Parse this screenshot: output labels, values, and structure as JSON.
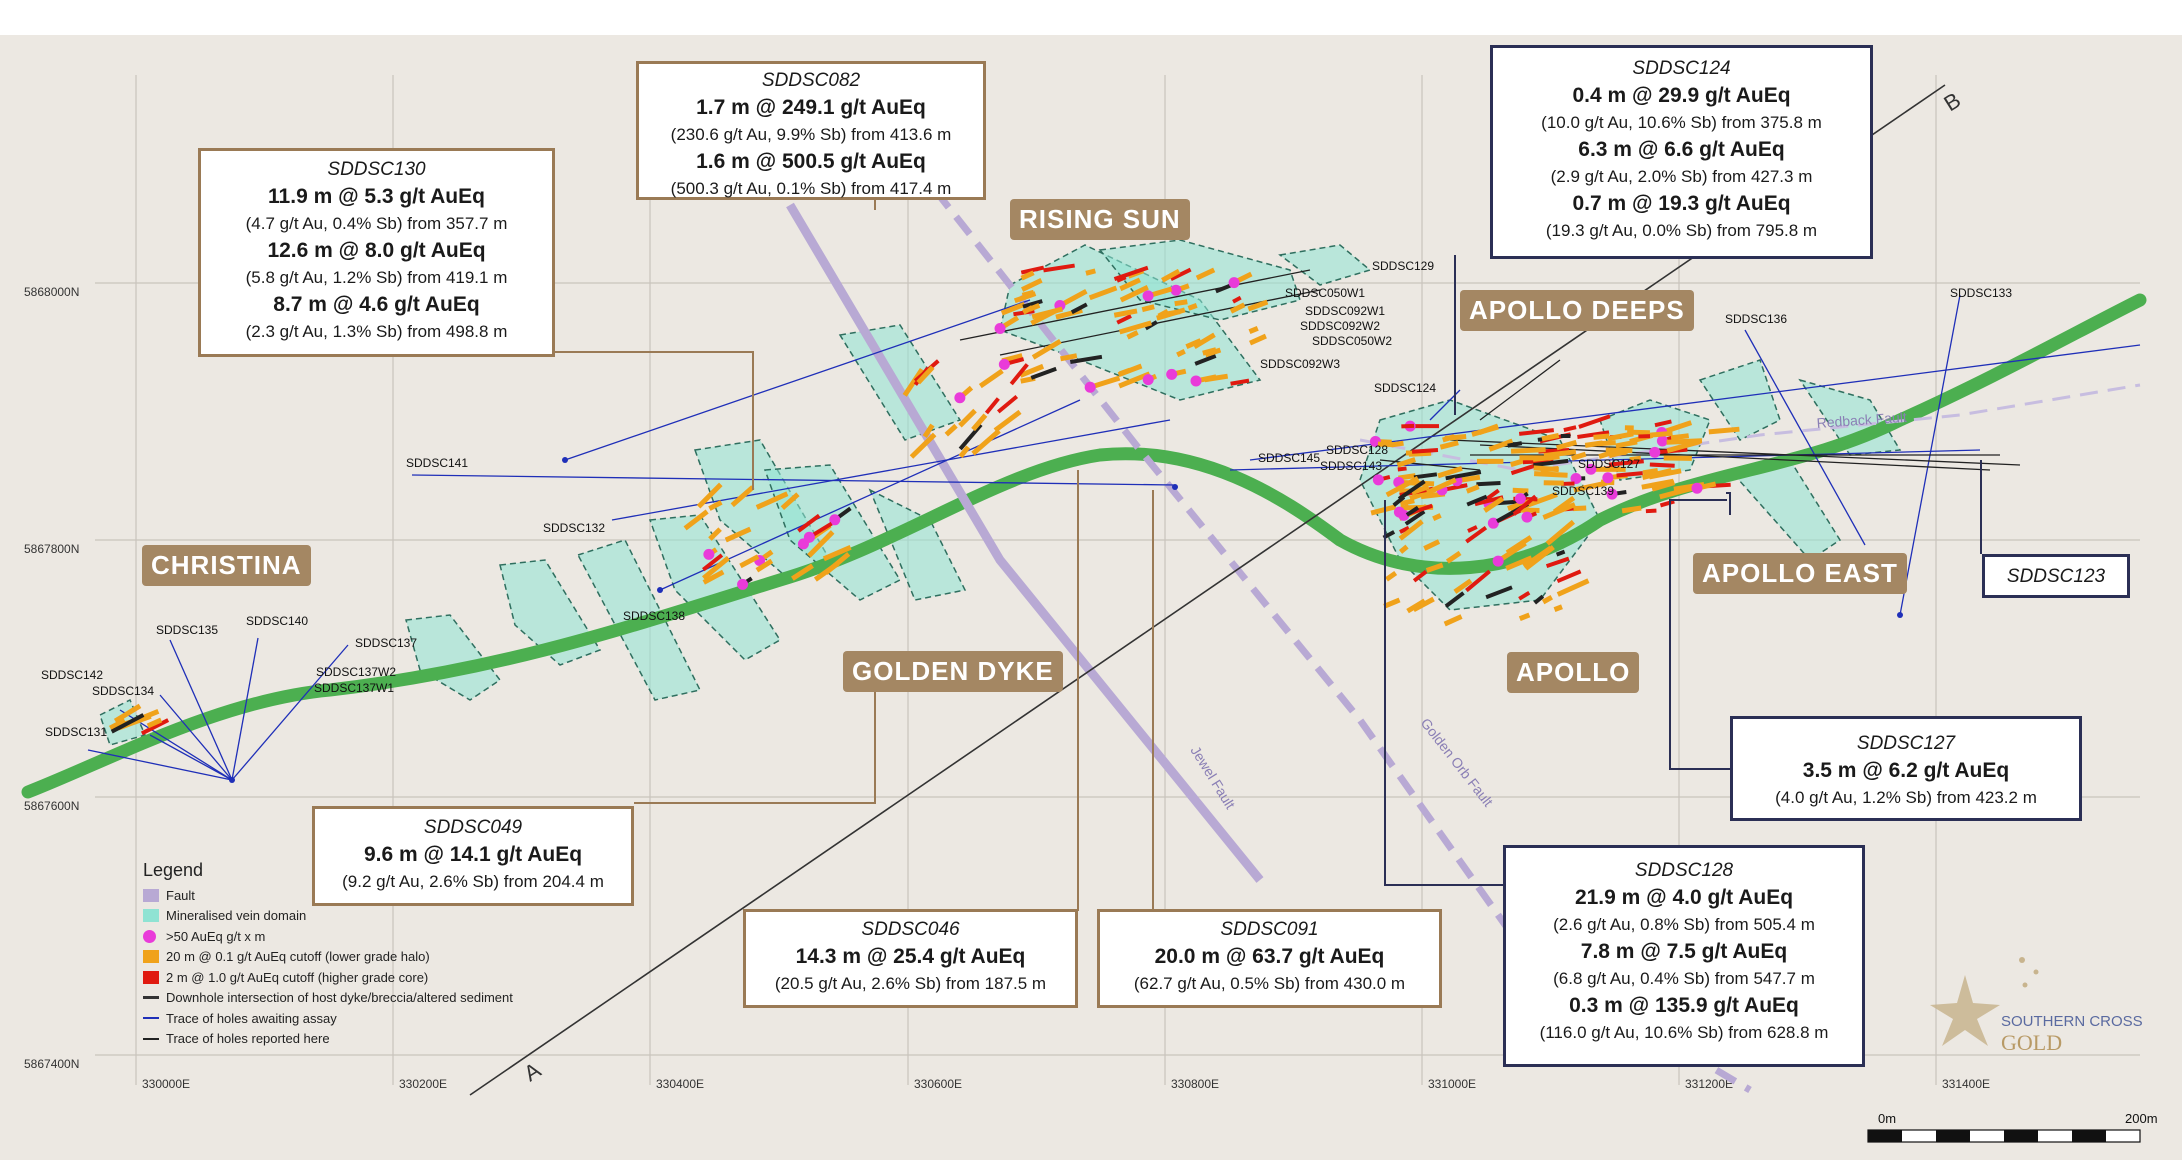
{
  "map": {
    "background_color": "#ece8e2",
    "grid": {
      "eastings": [
        "330000E",
        "330200E",
        "330400E",
        "330600E",
        "330800E",
        "331000E",
        "331200E",
        "331400E"
      ],
      "northings": [
        "5868000N",
        "5867800N",
        "5867600N",
        "5867400N"
      ]
    },
    "prospects": [
      "CHRISTINA",
      "GOLDEN DYKE",
      "RISING SUN",
      "APOLLO DEEPS",
      "APOLLO",
      "APOLLO EAST"
    ],
    "holes": [
      "SDDSC129",
      "SDDSC050W1",
      "SDDSC092W1",
      "SDDSC092W2",
      "SDDSC050W2",
      "SDDSC092W3",
      "SDDSC141",
      "SDDSC132",
      "SDDSC138",
      "SDDSC135",
      "SDDSC140",
      "SDDSC137",
      "SDDSC137W2",
      "SDDSC137W1",
      "SDDSC142",
      "SDDSC134",
      "SDDSC131",
      "SDDSC124",
      "SDDSC136",
      "SDDSC133",
      "SDDSC145",
      "SDDSC128",
      "SDDSC143",
      "SDDSC127",
      "SDDSC139"
    ],
    "faults": [
      "Redback Fault",
      "Jewel Fault",
      "Golden Orb Fault"
    ],
    "section_endpoints": [
      "A",
      "B"
    ],
    "scale_bar": {
      "start": "0m",
      "end": "200m"
    },
    "logo": {
      "line1": "SOUTHERN CROSS",
      "line2": "GOLD"
    },
    "colors": {
      "fault": "#b8a9d4",
      "vein_domain": "#8fe3d3",
      "high_grade_point": "#e93bd9",
      "low_grade_halo": "#f0a21a",
      "high_grade_core": "#e01a10",
      "dyke": "#4caf50",
      "label_fill": "#a48763",
      "navy": "#2b2f55"
    }
  },
  "callouts": {
    "sddsc082": {
      "hole": "SDDSC082",
      "l1": "1.7 m @ 249.1 g/t AuEq",
      "l2": "(230.6 g/t Au, 9.9% Sb) from 413.6 m",
      "l3": "1.6 m @ 500.5 g/t AuEq",
      "l4": "(500.3 g/t Au, 0.1% Sb) from 417.4 m"
    },
    "sddsc130": {
      "hole": "SDDSC130",
      "l1": "11.9 m @ 5.3 g/t AuEq",
      "l2": "(4.7 g/t Au, 0.4% Sb) from 357.7 m",
      "l3": "12.6 m @ 8.0 g/t AuEq",
      "l4": "(5.8 g/t Au, 1.2% Sb) from 419.1 m",
      "l5": "8.7 m @ 4.6 g/t AuEq",
      "l6": "(2.3 g/t Au, 1.3% Sb) from 498.8 m"
    },
    "sddsc124": {
      "hole": "SDDSC124",
      "l1": "0.4 m @ 29.9 g/t AuEq",
      "l2": "(10.0 g/t Au, 10.6% Sb) from 375.8 m",
      "l3": "6.3 m @ 6.6 g/t AuEq",
      "l4": "(2.9 g/t Au, 2.0% Sb) from 427.3 m",
      "l5": "0.7 m @ 19.3 g/t AuEq",
      "l6": "(19.3 g/t Au, 0.0% Sb) from 795.8 m"
    },
    "sddsc123": {
      "hole": "SDDSC123"
    },
    "sddsc127": {
      "hole": "SDDSC127",
      "l1": "3.5 m @ 6.2 g/t AuEq",
      "l2": "(4.0 g/t Au, 1.2% Sb) from 423.2 m"
    },
    "sddsc049": {
      "hole": "SDDSC049",
      "l1": "9.6 m @ 14.1 g/t AuEq",
      "l2": "(9.2 g/t Au, 2.6% Sb) from 204.4 m"
    },
    "sddsc046": {
      "hole": "SDDSC046",
      "l1": "14.3 m @ 25.4 g/t AuEq",
      "l2": "(20.5 g/t Au, 2.6% Sb) from 187.5 m"
    },
    "sddsc091": {
      "hole": "SDDSC091",
      "l1": "20.0 m @ 63.7 g/t AuEq",
      "l2": "(62.7 g/t Au, 0.5% Sb) from 430.0 m"
    },
    "sddsc128": {
      "hole": "SDDSC128",
      "l1": "21.9 m @ 4.0 g/t AuEq",
      "l2": "(2.6 g/t Au, 0.8% Sb) from 505.4 m",
      "l3": "7.8 m @ 7.5 g/t AuEq",
      "l4": "(6.8 g/t Au, 0.4% Sb) from 547.7 m",
      "l5": "0.3 m @ 135.9 g/t AuEq",
      "l6": "(116.0 g/t Au, 10.6% Sb) from 628.8 m"
    }
  },
  "legend": {
    "title": "Legend",
    "items": [
      {
        "label": "Fault",
        "kind": "swatch",
        "color": "#b8a9d4"
      },
      {
        "label": "Mineralised vein domain",
        "kind": "swatch",
        "color": "#8fe3d3"
      },
      {
        "label": ">50 AuEq g/t x m",
        "kind": "dot",
        "color": "#e93bd9"
      },
      {
        "label": "20 m @ 0.1 g/t AuEq cutoff (lower grade halo)",
        "kind": "swatch",
        "color": "#f0a21a"
      },
      {
        "label": "2 m @ 1.0 g/t AuEq cutoff (higher grade core)",
        "kind": "swatch",
        "color": "#e01a10"
      },
      {
        "label": "Downhole intersection of host dyke/breccia/altered sediment",
        "kind": "line",
        "color": "#333333"
      },
      {
        "label": "Trace of holes awaiting assay",
        "kind": "line",
        "color": "#1f2fb8"
      },
      {
        "label": "Trace of holes reported here",
        "kind": "line",
        "color": "#222222"
      }
    ]
  }
}
